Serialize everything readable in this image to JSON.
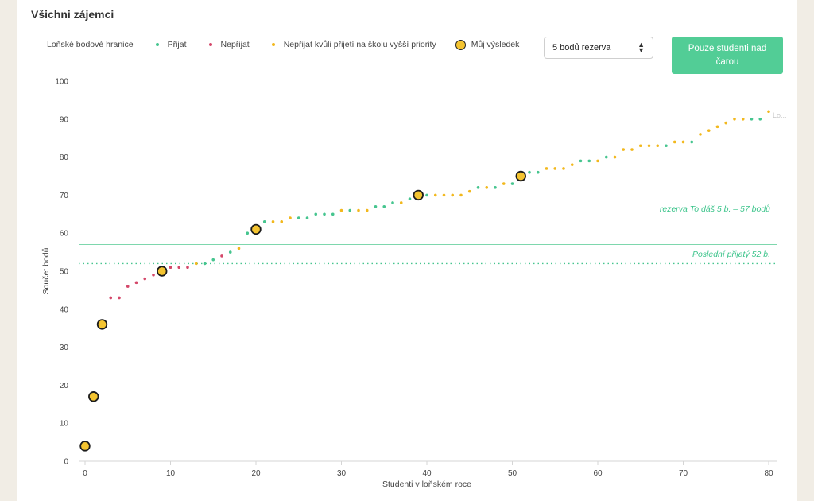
{
  "title": "Všichni zájemci",
  "legend": {
    "last_year": "Loňské bodové hranice",
    "admitted": "Přijat",
    "rejected": "Nepřijat",
    "rejected_priority": "Nepřijat kvůli přijetí na školu vyšší priority",
    "my_result": "Můj výsledek"
  },
  "colors": {
    "admitted": "#46c58f",
    "rejected": "#d4486a",
    "rejected_priority": "#f2b81d",
    "my_result": "#f4c430",
    "button": "#52cd96"
  },
  "reserve_select": {
    "value": "5 bodů rezerva"
  },
  "filter_button": {
    "label": "Pouze studenti nad čarou"
  },
  "chart_data": {
    "type": "scatter",
    "xlabel": "Studenti v loňském roce",
    "ylabel": "Součet bodů",
    "xlim": [
      0,
      80
    ],
    "ylim": [
      0,
      100
    ],
    "xticks": [
      0,
      10,
      20,
      30,
      40,
      50,
      60,
      70,
      80
    ],
    "yticks": [
      0,
      10,
      20,
      30,
      40,
      50,
      60,
      70,
      80,
      90,
      100
    ],
    "last_year_cutoff": 52,
    "reserve_line": 57,
    "annotations": {
      "reserve": "rezerva To dáš 5 b. – 57 bodů",
      "last_admitted": "Poslední přijatý 52 b.",
      "cutoff_label": "Lo..."
    },
    "points": [
      {
        "x": 3,
        "y": 43,
        "s": "rejected"
      },
      {
        "x": 4,
        "y": 43,
        "s": "rejected"
      },
      {
        "x": 5,
        "y": 46,
        "s": "rejected"
      },
      {
        "x": 6,
        "y": 47,
        "s": "rejected"
      },
      {
        "x": 7,
        "y": 48,
        "s": "rejected"
      },
      {
        "x": 8,
        "y": 49,
        "s": "rejected"
      },
      {
        "x": 10,
        "y": 51,
        "s": "rejected"
      },
      {
        "x": 11,
        "y": 51,
        "s": "rejected"
      },
      {
        "x": 12,
        "y": 51,
        "s": "rejected"
      },
      {
        "x": 13,
        "y": 52,
        "s": "rejected_priority"
      },
      {
        "x": 14,
        "y": 52,
        "s": "admitted"
      },
      {
        "x": 15,
        "y": 53,
        "s": "admitted"
      },
      {
        "x": 16,
        "y": 54,
        "s": "rejected"
      },
      {
        "x": 17,
        "y": 55,
        "s": "admitted"
      },
      {
        "x": 18,
        "y": 56,
        "s": "rejected_priority"
      },
      {
        "x": 19,
        "y": 60,
        "s": "admitted"
      },
      {
        "x": 21,
        "y": 63,
        "s": "admitted"
      },
      {
        "x": 22,
        "y": 63,
        "s": "rejected_priority"
      },
      {
        "x": 23,
        "y": 63,
        "s": "rejected_priority"
      },
      {
        "x": 24,
        "y": 64,
        "s": "rejected_priority"
      },
      {
        "x": 25,
        "y": 64,
        "s": "admitted"
      },
      {
        "x": 26,
        "y": 64,
        "s": "admitted"
      },
      {
        "x": 27,
        "y": 65,
        "s": "admitted"
      },
      {
        "x": 28,
        "y": 65,
        "s": "admitted"
      },
      {
        "x": 29,
        "y": 65,
        "s": "admitted"
      },
      {
        "x": 30,
        "y": 66,
        "s": "rejected_priority"
      },
      {
        "x": 31,
        "y": 66,
        "s": "admitted"
      },
      {
        "x": 32,
        "y": 66,
        "s": "rejected_priority"
      },
      {
        "x": 33,
        "y": 66,
        "s": "rejected_priority"
      },
      {
        "x": 34,
        "y": 67,
        "s": "admitted"
      },
      {
        "x": 35,
        "y": 67,
        "s": "admitted"
      },
      {
        "x": 36,
        "y": 68,
        "s": "admitted"
      },
      {
        "x": 37,
        "y": 68,
        "s": "rejected_priority"
      },
      {
        "x": 38,
        "y": 69,
        "s": "admitted"
      },
      {
        "x": 40,
        "y": 70,
        "s": "admitted"
      },
      {
        "x": 41,
        "y": 70,
        "s": "rejected_priority"
      },
      {
        "x": 42,
        "y": 70,
        "s": "rejected_priority"
      },
      {
        "x": 43,
        "y": 70,
        "s": "rejected_priority"
      },
      {
        "x": 44,
        "y": 70,
        "s": "rejected_priority"
      },
      {
        "x": 45,
        "y": 71,
        "s": "rejected_priority"
      },
      {
        "x": 46,
        "y": 72,
        "s": "admitted"
      },
      {
        "x": 47,
        "y": 72,
        "s": "rejected_priority"
      },
      {
        "x": 48,
        "y": 72,
        "s": "admitted"
      },
      {
        "x": 49,
        "y": 73,
        "s": "rejected_priority"
      },
      {
        "x": 50,
        "y": 73,
        "s": "admitted"
      },
      {
        "x": 52,
        "y": 76,
        "s": "admitted"
      },
      {
        "x": 53,
        "y": 76,
        "s": "admitted"
      },
      {
        "x": 54,
        "y": 77,
        "s": "rejected_priority"
      },
      {
        "x": 55,
        "y": 77,
        "s": "rejected_priority"
      },
      {
        "x": 56,
        "y": 77,
        "s": "rejected_priority"
      },
      {
        "x": 57,
        "y": 78,
        "s": "rejected_priority"
      },
      {
        "x": 58,
        "y": 79,
        "s": "admitted"
      },
      {
        "x": 59,
        "y": 79,
        "s": "admitted"
      },
      {
        "x": 60,
        "y": 79,
        "s": "rejected_priority"
      },
      {
        "x": 61,
        "y": 80,
        "s": "admitted"
      },
      {
        "x": 62,
        "y": 80,
        "s": "rejected_priority"
      },
      {
        "x": 63,
        "y": 82,
        "s": "rejected_priority"
      },
      {
        "x": 64,
        "y": 82,
        "s": "rejected_priority"
      },
      {
        "x": 65,
        "y": 83,
        "s": "rejected_priority"
      },
      {
        "x": 66,
        "y": 83,
        "s": "rejected_priority"
      },
      {
        "x": 67,
        "y": 83,
        "s": "rejected_priority"
      },
      {
        "x": 68,
        "y": 83,
        "s": "admitted"
      },
      {
        "x": 69,
        "y": 84,
        "s": "rejected_priority"
      },
      {
        "x": 70,
        "y": 84,
        "s": "rejected_priority"
      },
      {
        "x": 71,
        "y": 84,
        "s": "admitted"
      },
      {
        "x": 72,
        "y": 86,
        "s": "rejected_priority"
      },
      {
        "x": 73,
        "y": 87,
        "s": "rejected_priority"
      },
      {
        "x": 74,
        "y": 88,
        "s": "rejected_priority"
      },
      {
        "x": 75,
        "y": 89,
        "s": "rejected_priority"
      },
      {
        "x": 76,
        "y": 90,
        "s": "rejected_priority"
      },
      {
        "x": 77,
        "y": 90,
        "s": "rejected_priority"
      },
      {
        "x": 78,
        "y": 90,
        "s": "admitted"
      },
      {
        "x": 79,
        "y": 90,
        "s": "admitted"
      },
      {
        "x": 80,
        "y": 92,
        "s": "rejected_priority"
      }
    ],
    "my_results": [
      {
        "x": 0,
        "y": 4
      },
      {
        "x": 1,
        "y": 17
      },
      {
        "x": 2,
        "y": 36
      },
      {
        "x": 9,
        "y": 50
      },
      {
        "x": 20,
        "y": 61
      },
      {
        "x": 39,
        "y": 70
      },
      {
        "x": 51,
        "y": 75
      }
    ]
  }
}
